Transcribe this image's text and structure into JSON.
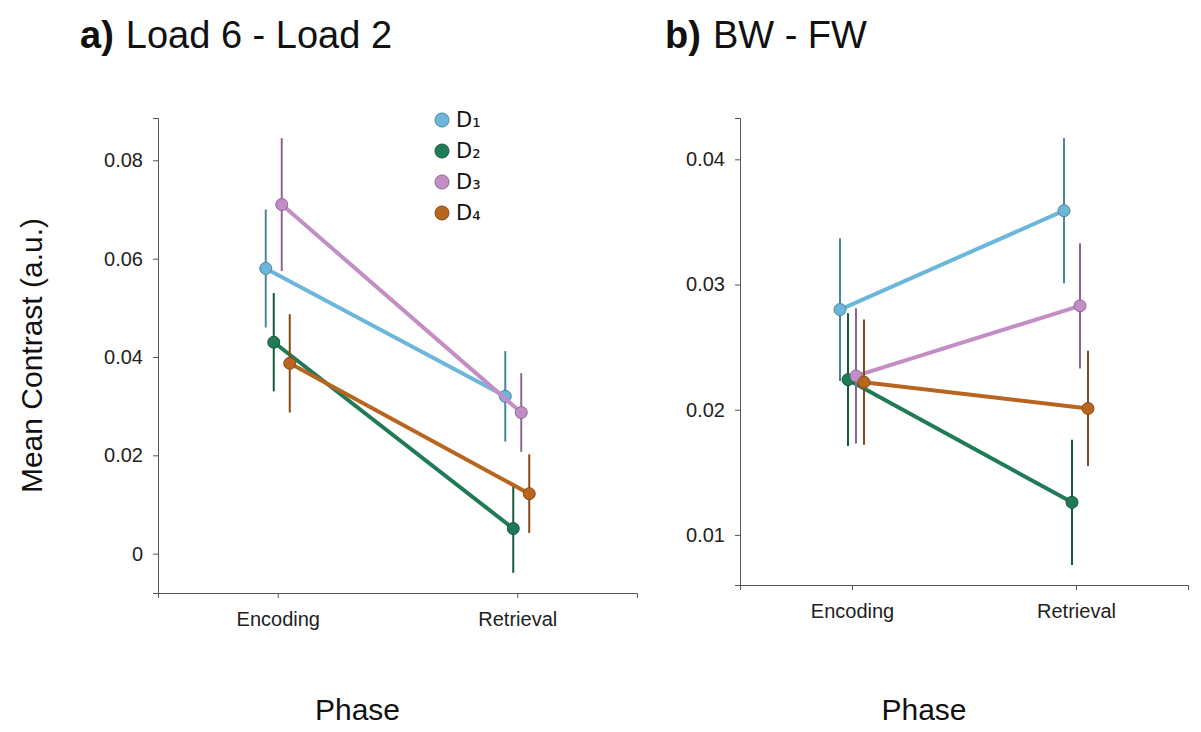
{
  "chart_data": [
    {
      "type": "line",
      "panel": "a)",
      "title": "Load 6 - Load 2",
      "x_label": "Phase",
      "y_label": "Mean Contrast (a.u.)",
      "categories": [
        "Encoding",
        "Retrieval"
      ],
      "ylim": [
        -0.008,
        0.0886
      ],
      "yticks": [
        0,
        0.02,
        0.04,
        0.06,
        0.08
      ],
      "legend": "top-right",
      "marker": "circle",
      "series": [
        {
          "name": "D₁",
          "color": "#6cb6da",
          "values": [
            0.058,
            0.032
          ],
          "errors": [
            0.012,
            0.0092
          ]
        },
        {
          "name": "D₂",
          "color": "#1f7a56",
          "values": [
            0.043,
            0.0051
          ],
          "errors": [
            0.01,
            0.009
          ]
        },
        {
          "name": "D₃",
          "color": "#c38ec6",
          "values": [
            0.071,
            0.0287
          ],
          "errors": [
            0.0135,
            0.008
          ]
        },
        {
          "name": "D₄",
          "color": "#b8661f",
          "values": [
            0.0387,
            0.0122
          ],
          "errors": [
            0.01,
            0.008
          ]
        }
      ]
    },
    {
      "type": "line",
      "panel": "b)",
      "title": "BW - FW",
      "x_label": "Phase",
      "categories": [
        "Encoding",
        "Retrieval"
      ],
      "ylim": [
        0.006,
        0.0433
      ],
      "yticks": [
        0.01,
        0.02,
        0.03,
        0.04
      ],
      "marker": "circle",
      "series": [
        {
          "name": "D₁",
          "color": "#6cb6da",
          "values": [
            0.028,
            0.0359
          ],
          "errors": [
            0.0057,
            0.0058
          ]
        },
        {
          "name": "D₂",
          "color": "#1f7a56",
          "values": [
            0.0224,
            0.0126
          ],
          "errors": [
            0.0053,
            0.005
          ]
        },
        {
          "name": "D₃",
          "color": "#c38ec6",
          "values": [
            0.0227,
            0.0283
          ],
          "errors": [
            0.0054,
            0.005
          ]
        },
        {
          "name": "D₄",
          "color": "#b8661f",
          "values": [
            0.0222,
            0.0201
          ],
          "errors": [
            0.005,
            0.0046
          ]
        }
      ]
    }
  ]
}
